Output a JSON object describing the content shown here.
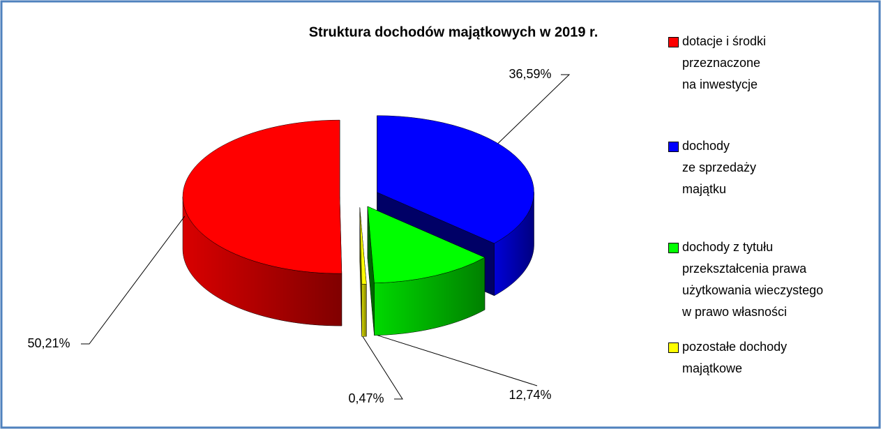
{
  "chart_data": {
    "type": "pie3d",
    "title": "Struktura dochodów majątkowych w 2019 r.",
    "series": [
      {
        "name": "dotacje i środki\nprzeznaczone\nna inwestycje",
        "color": "#ff0000",
        "values": [
          50.21
        ],
        "value_labels": [
          "50,21%"
        ]
      },
      {
        "name": "dochody\nze sprzedaży\nmajątku",
        "color": "#0000ff",
        "values": [
          36.59
        ],
        "value_labels": [
          "36,59%"
        ]
      },
      {
        "name": "dochody z tytułu\nprzekształcenia prawa\nużytkowania wieczystego\nw prawo własności",
        "color": "#00ff00",
        "values": [
          12.74
        ],
        "value_labels": [
          "12,74%"
        ]
      },
      {
        "name": "pozostałe dochody\nmajątkowe",
        "color": "#ffff00",
        "values": [
          0.47
        ],
        "value_labels": [
          "0,47%"
        ]
      }
    ],
    "legend": "right"
  }
}
